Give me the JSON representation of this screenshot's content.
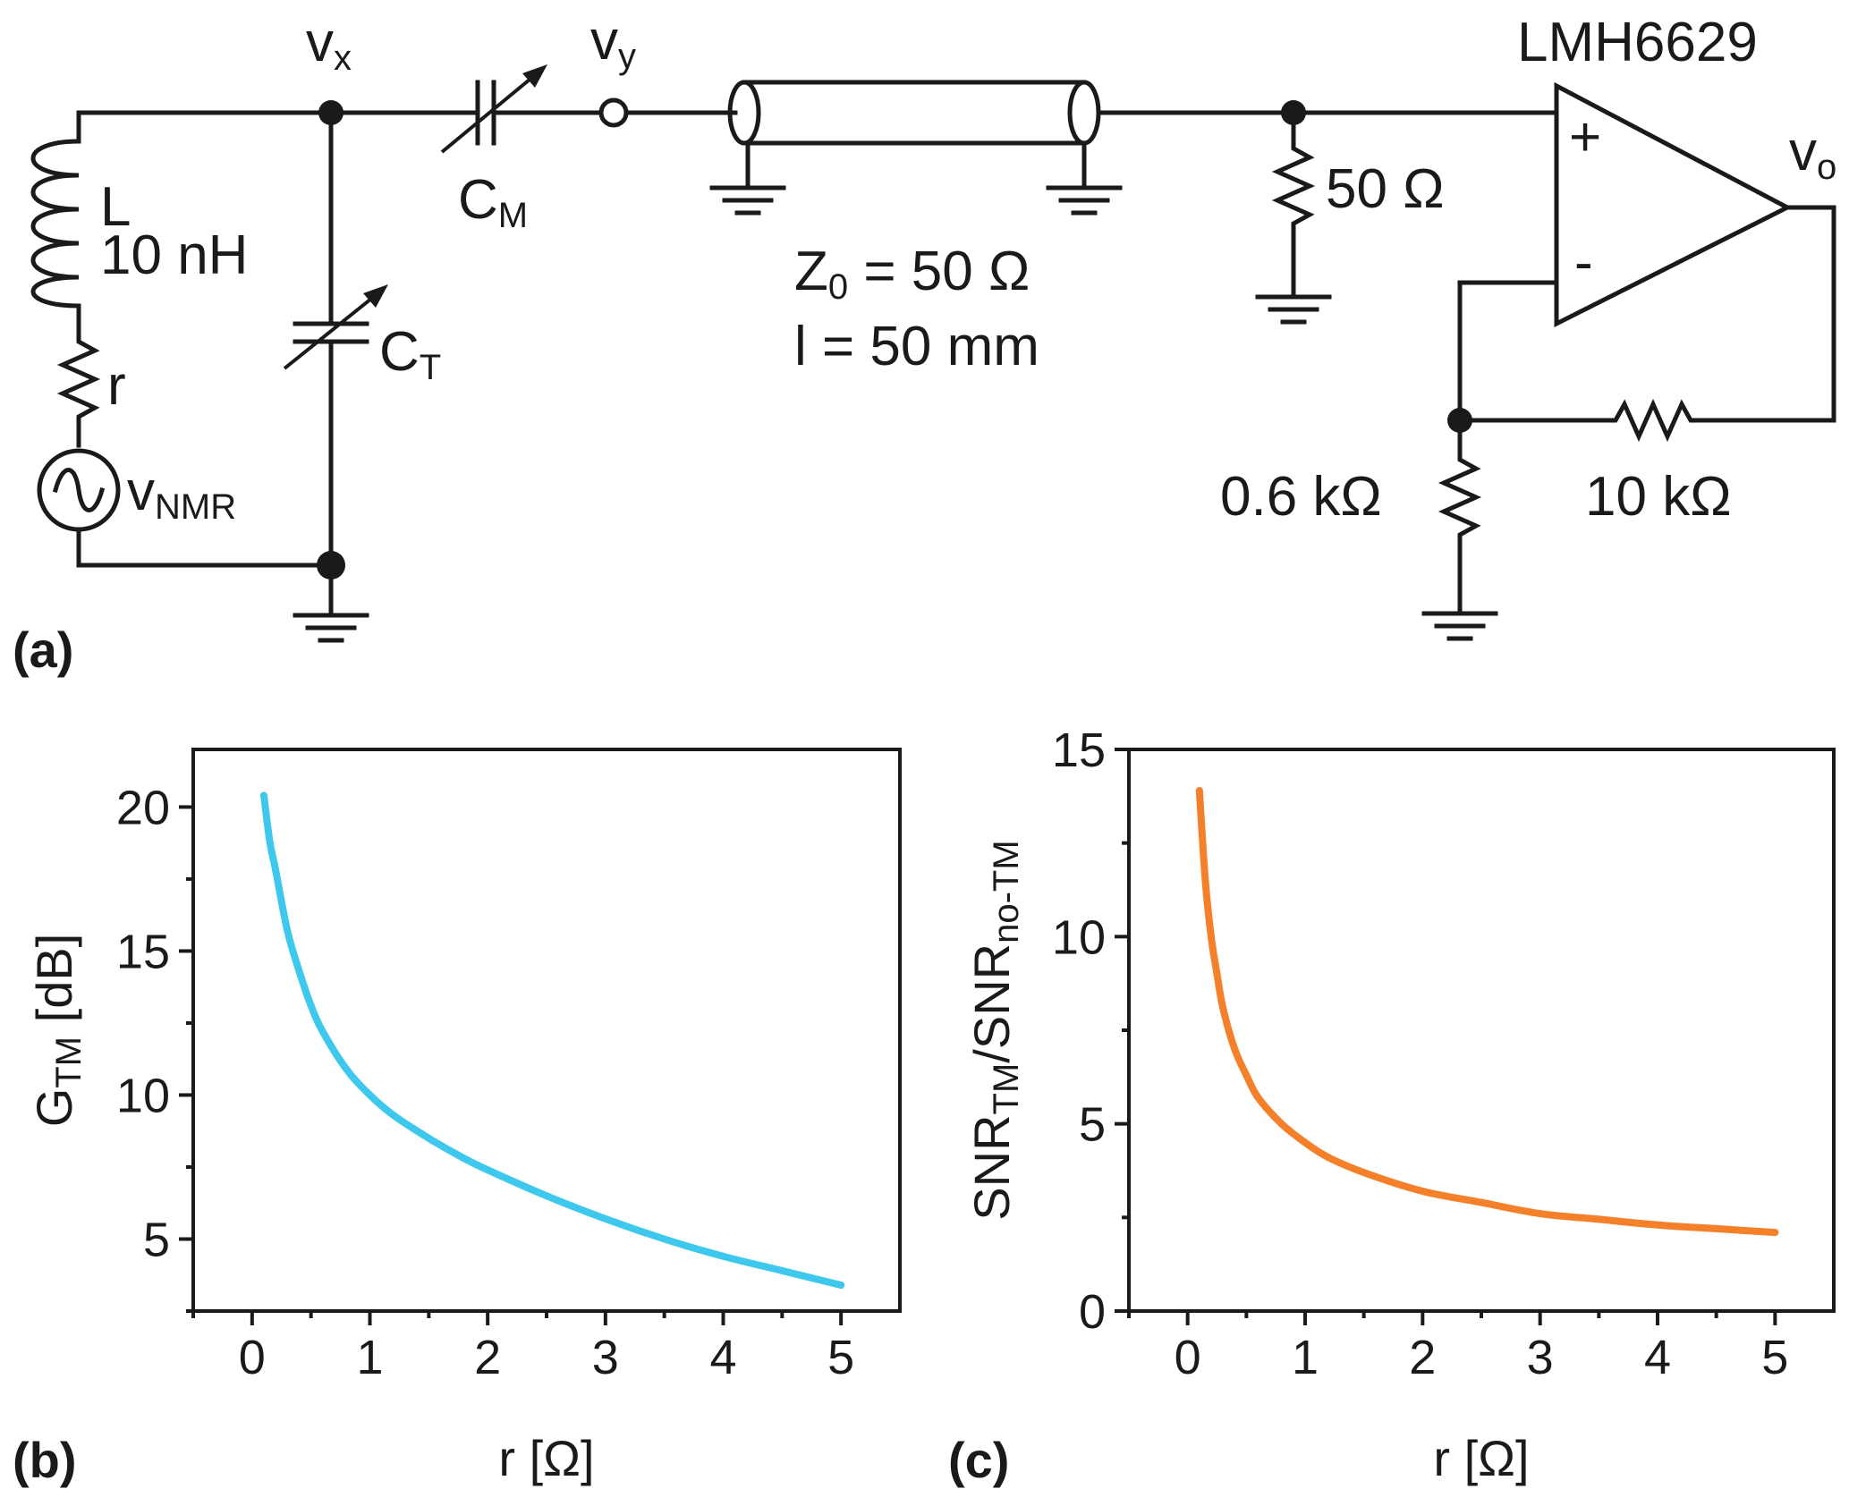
{
  "circuit": {
    "panel_label": "(a)",
    "node_vx": {
      "main": "v",
      "sub": "x"
    },
    "node_vy": {
      "main": "v",
      "sub": "y"
    },
    "node_vo": {
      "main": "v",
      "sub": "o"
    },
    "inductor": {
      "name": "L",
      "value": "10 nH"
    },
    "coil_resistance": "r",
    "source": {
      "main": "v",
      "sub": "NMR"
    },
    "tuning_cap": {
      "main": "C",
      "sub": "T"
    },
    "matching_cap": {
      "main": "C",
      "sub": "M"
    },
    "transmission_line": {
      "z0_main": "Z",
      "z0_sub": "0",
      "z0_value": " = 50 Ω",
      "length": "l = 50 mm"
    },
    "termination": "50 Ω",
    "amplifier": {
      "name": "LMH6629",
      "plus": "+",
      "minus": "-"
    },
    "gain_resistor": "0.6 kΩ",
    "feedback_resistor": "10 kΩ"
  },
  "chart_data": [
    {
      "panel_label": "(b)",
      "type": "line",
      "color": "#3ec8ee",
      "xlabel": "r [Ω]",
      "ylabel": {
        "main": "G",
        "sub": "TM",
        "suffix": " [dB]"
      },
      "xlim": [
        -0.5,
        5.5
      ],
      "ylim": [
        2.5,
        22
      ],
      "xticks": [
        "0",
        "1",
        "2",
        "3",
        "4",
        "5"
      ],
      "yticks": [
        "5",
        "10",
        "15",
        "20"
      ],
      "x": [
        0.1,
        0.15,
        0.2,
        0.3,
        0.4,
        0.5,
        0.6,
        0.8,
        1.0,
        1.2,
        1.5,
        1.8,
        2.0,
        2.5,
        3.0,
        3.5,
        4.0,
        4.5,
        5.0
      ],
      "y": [
        20.4,
        18.8,
        17.8,
        15.7,
        14.3,
        13.1,
        12.2,
        10.9,
        10.0,
        9.3,
        8.5,
        7.8,
        7.4,
        6.5,
        5.7,
        5.0,
        4.4,
        3.9,
        3.4
      ]
    },
    {
      "panel_label": "(c)",
      "type": "line",
      "color": "#f4802a",
      "xlabel": "r [Ω]",
      "ylabel": {
        "main1": "SNR",
        "sub1": "TM",
        "mid": "/SNR",
        "sub2": "no-TM"
      },
      "xlim": [
        -0.5,
        5.5
      ],
      "ylim": [
        0,
        15
      ],
      "xticks": [
        "0",
        "1",
        "2",
        "3",
        "4",
        "5"
      ],
      "yticks": [
        "0",
        "5",
        "10",
        "15"
      ],
      "x": [
        0.1,
        0.15,
        0.2,
        0.25,
        0.3,
        0.4,
        0.5,
        0.6,
        0.8,
        1.0,
        1.2,
        1.5,
        2.0,
        2.5,
        3.0,
        3.5,
        4.0,
        4.5,
        5.0
      ],
      "y": [
        13.9,
        11.5,
        10.0,
        9.0,
        8.1,
        7.0,
        6.3,
        5.7,
        5.0,
        4.5,
        4.1,
        3.7,
        3.2,
        2.9,
        2.6,
        2.45,
        2.3,
        2.2,
        2.1
      ]
    }
  ]
}
